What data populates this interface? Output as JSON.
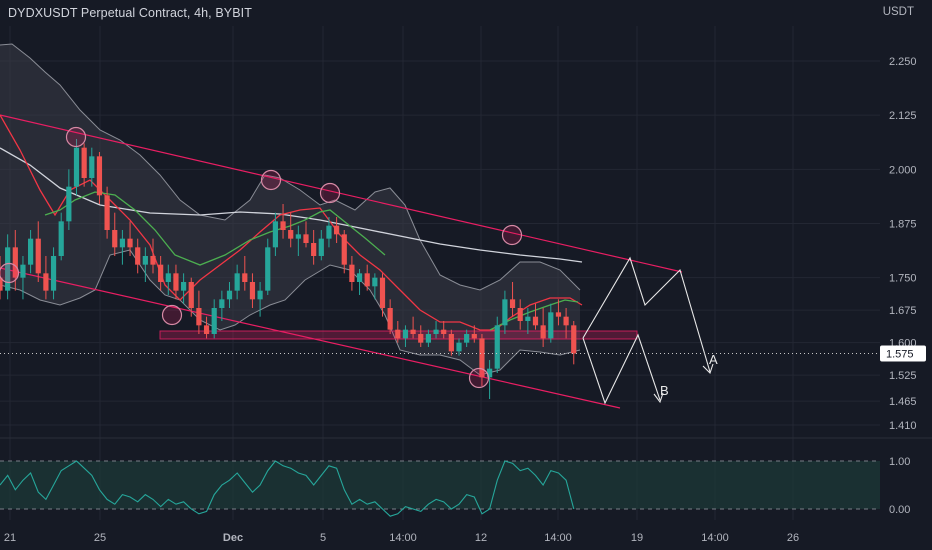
{
  "header": {
    "title": "DYDXUSDT Perpetual Contract, 4h, BYBIT",
    "currency": "USDT"
  },
  "colors": {
    "background": "#161a25",
    "grid": "#232733",
    "up": "#26a69a",
    "down": "#ef5350",
    "channel": "#e91e63",
    "bollinger_fill": "#3a3d47",
    "bollinger_line": "#8a8d96",
    "ema_fast": "#f23645",
    "ema_mid": "#4caf50",
    "ema_slow": "#d1d4dc",
    "projection": "#e8e8e8",
    "rsi_line": "#26a69a",
    "rsi_fill": "#1c3a38"
  },
  "chart_data": [
    {
      "type": "candlestick",
      "symbol": "DYDXUSDT Perpetual Contract",
      "timeframe": "4h",
      "exchange": "BYBIT",
      "y_axis": {
        "ticks": [
          "2.250",
          "2.125",
          "2.000",
          "1.875",
          "1.750",
          "1.675",
          "1.600",
          "1.525",
          "1.465",
          "1.410"
        ],
        "ylim": [
          1.39,
          2.32
        ]
      },
      "x_axis": {
        "ticks": [
          "21",
          "25",
          "Dec",
          "5",
          "14:00",
          "12",
          "14:00",
          "19",
          "14:00",
          "26"
        ]
      },
      "last_price": "1.575",
      "ohlc": [
        [
          1.75,
          1.8,
          1.7,
          1.72
        ],
        [
          1.72,
          1.85,
          1.7,
          1.82
        ],
        [
          1.82,
          1.86,
          1.72,
          1.75
        ],
        [
          1.75,
          1.8,
          1.7,
          1.78
        ],
        [
          1.78,
          1.86,
          1.76,
          1.84
        ],
        [
          1.84,
          1.88,
          1.74,
          1.76
        ],
        [
          1.76,
          1.8,
          1.7,
          1.72
        ],
        [
          1.72,
          1.82,
          1.7,
          1.8
        ],
        [
          1.8,
          1.9,
          1.79,
          1.88
        ],
        [
          1.88,
          2.0,
          1.86,
          1.96
        ],
        [
          1.96,
          2.07,
          1.94,
          2.05
        ],
        [
          2.05,
          2.06,
          1.96,
          1.98
        ],
        [
          1.98,
          2.05,
          1.96,
          2.03
        ],
        [
          2.03,
          2.04,
          1.92,
          1.94
        ],
        [
          1.94,
          1.96,
          1.84,
          1.86
        ],
        [
          1.86,
          1.9,
          1.8,
          1.82
        ],
        [
          1.82,
          1.86,
          1.78,
          1.84
        ],
        [
          1.84,
          1.88,
          1.8,
          1.82
        ],
        [
          1.82,
          1.84,
          1.76,
          1.78
        ],
        [
          1.78,
          1.82,
          1.74,
          1.8
        ],
        [
          1.8,
          1.84,
          1.76,
          1.78
        ],
        [
          1.78,
          1.8,
          1.72,
          1.74
        ],
        [
          1.74,
          1.78,
          1.71,
          1.76
        ],
        [
          1.76,
          1.78,
          1.7,
          1.72
        ],
        [
          1.72,
          1.76,
          1.69,
          1.74
        ],
        [
          1.74,
          1.75,
          1.66,
          1.68
        ],
        [
          1.68,
          1.72,
          1.62,
          1.64
        ],
        [
          1.64,
          1.66,
          1.61,
          1.62
        ],
        [
          1.62,
          1.7,
          1.61,
          1.68
        ],
        [
          1.68,
          1.72,
          1.65,
          1.7
        ],
        [
          1.7,
          1.74,
          1.68,
          1.72
        ],
        [
          1.72,
          1.78,
          1.7,
          1.76
        ],
        [
          1.76,
          1.8,
          1.72,
          1.74
        ],
        [
          1.74,
          1.76,
          1.68,
          1.7
        ],
        [
          1.7,
          1.74,
          1.66,
          1.72
        ],
        [
          1.72,
          1.84,
          1.71,
          1.82
        ],
        [
          1.82,
          1.9,
          1.8,
          1.88
        ],
        [
          1.88,
          1.92,
          1.84,
          1.86
        ],
        [
          1.86,
          1.9,
          1.82,
          1.84
        ],
        [
          1.84,
          1.87,
          1.8,
          1.85
        ],
        [
          1.85,
          1.88,
          1.82,
          1.83
        ],
        [
          1.83,
          1.86,
          1.78,
          1.8
        ],
        [
          1.8,
          1.86,
          1.79,
          1.84
        ],
        [
          1.84,
          1.89,
          1.82,
          1.87
        ],
        [
          1.87,
          1.89,
          1.83,
          1.85
        ],
        [
          1.85,
          1.86,
          1.76,
          1.78
        ],
        [
          1.78,
          1.8,
          1.72,
          1.74
        ],
        [
          1.74,
          1.77,
          1.71,
          1.76
        ],
        [
          1.76,
          1.78,
          1.72,
          1.73
        ],
        [
          1.73,
          1.76,
          1.7,
          1.75
        ],
        [
          1.75,
          1.76,
          1.66,
          1.68
        ],
        [
          1.68,
          1.7,
          1.62,
          1.63
        ],
        [
          1.63,
          1.65,
          1.6,
          1.61
        ],
        [
          1.61,
          1.64,
          1.59,
          1.63
        ],
        [
          1.63,
          1.66,
          1.61,
          1.62
        ],
        [
          1.62,
          1.64,
          1.59,
          1.6
        ],
        [
          1.6,
          1.63,
          1.59,
          1.62
        ],
        [
          1.62,
          1.65,
          1.61,
          1.63
        ],
        [
          1.63,
          1.65,
          1.61,
          1.62
        ],
        [
          1.62,
          1.63,
          1.57,
          1.58
        ],
        [
          1.58,
          1.61,
          1.57,
          1.6
        ],
        [
          1.6,
          1.63,
          1.59,
          1.62
        ],
        [
          1.62,
          1.64,
          1.6,
          1.61
        ],
        [
          1.61,
          1.62,
          1.5,
          1.52
        ],
        [
          1.52,
          1.56,
          1.47,
          1.54
        ],
        [
          1.54,
          1.66,
          1.53,
          1.64
        ],
        [
          1.64,
          1.72,
          1.62,
          1.7
        ],
        [
          1.7,
          1.74,
          1.66,
          1.68
        ],
        [
          1.68,
          1.7,
          1.63,
          1.65
        ],
        [
          1.65,
          1.68,
          1.62,
          1.66
        ],
        [
          1.66,
          1.69,
          1.63,
          1.64
        ],
        [
          1.64,
          1.68,
          1.59,
          1.61
        ],
        [
          1.61,
          1.69,
          1.6,
          1.67
        ],
        [
          1.67,
          1.7,
          1.64,
          1.66
        ],
        [
          1.66,
          1.68,
          1.61,
          1.64
        ],
        [
          1.64,
          1.65,
          1.55,
          1.575
        ]
      ],
      "indicators": [
        "Bollinger Bands",
        "EMA fast",
        "EMA mid",
        "EMA slow",
        "Descending channel",
        "Support zone",
        "Projection paths"
      ],
      "annotations": [
        "A",
        "B"
      ]
    },
    {
      "type": "line",
      "name": "oscillator",
      "y_axis": {
        "ticks": [
          "1.00",
          "0.00"
        ],
        "ylim": [
          -0.2,
          1.2
        ]
      },
      "values": [
        0.5,
        0.7,
        0.4,
        0.6,
        0.75,
        0.35,
        0.2,
        0.5,
        0.8,
        0.9,
        1.0,
        0.85,
        0.7,
        0.4,
        0.2,
        0.1,
        0.3,
        0.25,
        0.15,
        0.3,
        0.2,
        0.05,
        0.2,
        0.1,
        0.15,
        0.0,
        -0.1,
        -0.05,
        0.3,
        0.5,
        0.6,
        0.75,
        0.55,
        0.35,
        0.5,
        0.8,
        1.0,
        0.9,
        0.85,
        0.75,
        0.7,
        0.5,
        0.7,
        0.9,
        0.85,
        0.4,
        0.1,
        0.2,
        0.1,
        0.15,
        0.0,
        -0.15,
        -0.1,
        0.05,
        0.0,
        -0.05,
        0.1,
        0.2,
        0.15,
        0.0,
        0.1,
        0.3,
        0.25,
        -0.1,
        0.0,
        0.6,
        1.0,
        0.95,
        0.8,
        0.85,
        0.7,
        0.5,
        0.8,
        0.75,
        0.6,
        0.0
      ]
    }
  ]
}
